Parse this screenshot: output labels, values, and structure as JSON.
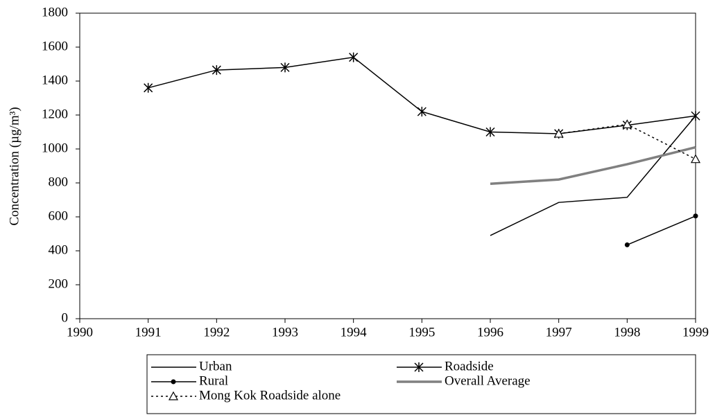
{
  "chart_data": {
    "type": "line",
    "y_label": "Concentration (µg/m³)",
    "x": [
      1991,
      1992,
      1993,
      1994,
      1995,
      1996,
      1997,
      1998,
      1999
    ],
    "xlim": [
      1990,
      1999
    ],
    "xticks": [
      1990,
      1991,
      1992,
      1993,
      1994,
      1995,
      1996,
      1997,
      1998,
      1999
    ],
    "ylim": [
      0,
      1800
    ],
    "yticks": [
      0,
      200,
      400,
      600,
      800,
      1000,
      1200,
      1400,
      1600,
      1800
    ],
    "series": [
      {
        "name": "Urban",
        "color": "#000000",
        "marker": "none",
        "line_style": "solid",
        "line_width": 1.5,
        "values": [
          null,
          null,
          null,
          null,
          null,
          490,
          685,
          715,
          1195
        ]
      },
      {
        "name": "Roadside",
        "color": "#000000",
        "marker": "star",
        "line_style": "solid",
        "line_width": 1.5,
        "values": [
          1360,
          1465,
          1480,
          1540,
          1220,
          1100,
          1090,
          1140,
          1195
        ]
      },
      {
        "name": "Rural",
        "color": "#000000",
        "marker": "dot",
        "line_style": "solid",
        "line_width": 1.5,
        "values": [
          null,
          null,
          null,
          null,
          null,
          null,
          null,
          435,
          605
        ]
      },
      {
        "name": "Overall Average",
        "color": "#808080",
        "marker": "none",
        "line_style": "solid",
        "line_width": 3.5,
        "values": [
          null,
          null,
          null,
          null,
          null,
          795,
          820,
          910,
          1010
        ]
      },
      {
        "name": "Mong Kok Roadside alone",
        "color": "#000000",
        "marker": "triangle",
        "line_style": "dotted",
        "line_width": 1.5,
        "values": [
          null,
          null,
          null,
          null,
          null,
          null,
          1090,
          1145,
          940
        ]
      }
    ],
    "legend_position": "bottom"
  }
}
